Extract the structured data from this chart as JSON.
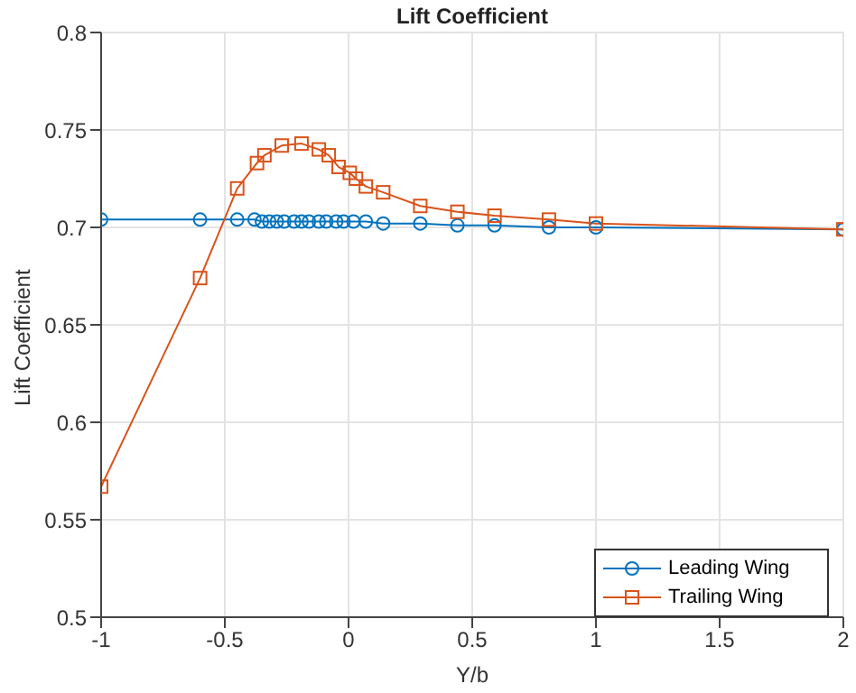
{
  "chart_data": {
    "type": "line",
    "title": "Lift Coefficient",
    "xlabel": "Y/b",
    "ylabel": "Lift Coefficient",
    "xlim": [
      -1,
      2
    ],
    "xticks": [
      -1,
      -0.5,
      0,
      0.5,
      1,
      1.5,
      2
    ],
    "ylim": [
      0.5,
      0.8
    ],
    "yticks": [
      0.5,
      0.55,
      0.6,
      0.65,
      0.7,
      0.75,
      0.8
    ],
    "grid": true,
    "legend": "bottom right",
    "line_style": "solid",
    "series": [
      {
        "name": "Leading Wing",
        "color": "#0072bd",
        "marker": "circle",
        "x": [
          -1,
          -0.6,
          -0.45,
          -0.38,
          -0.35,
          -0.32,
          -0.29,
          -0.26,
          -0.22,
          -0.19,
          -0.16,
          -0.12,
          -0.09,
          -0.05,
          -0.02,
          0.02,
          0.07,
          0.14,
          0.29,
          0.44,
          0.59,
          0.81,
          1,
          2
        ],
        "values": [
          0.704,
          0.704,
          0.704,
          0.704,
          0.703,
          0.703,
          0.703,
          0.703,
          0.703,
          0.703,
          0.703,
          0.703,
          0.703,
          0.703,
          0.703,
          0.703,
          0.703,
          0.702,
          0.702,
          0.701,
          0.701,
          0.7,
          0.7,
          0.699
        ]
      },
      {
        "name": "Trailing Wing",
        "color": "#d95319",
        "marker": "square",
        "x": [
          -1,
          -0.6,
          -0.45,
          -0.37,
          -0.34,
          -0.27,
          -0.19,
          -0.12,
          -0.08,
          -0.04,
          0.005,
          0.03,
          0.07,
          0.14,
          0.29,
          0.44,
          0.59,
          0.81,
          1,
          2
        ],
        "values": [
          0.567,
          0.674,
          0.72,
          0.733,
          0.737,
          0.742,
          0.743,
          0.74,
          0.737,
          0.731,
          0.728,
          0.725,
          0.721,
          0.718,
          0.711,
          0.708,
          0.706,
          0.704,
          0.702,
          0.699
        ]
      }
    ]
  }
}
